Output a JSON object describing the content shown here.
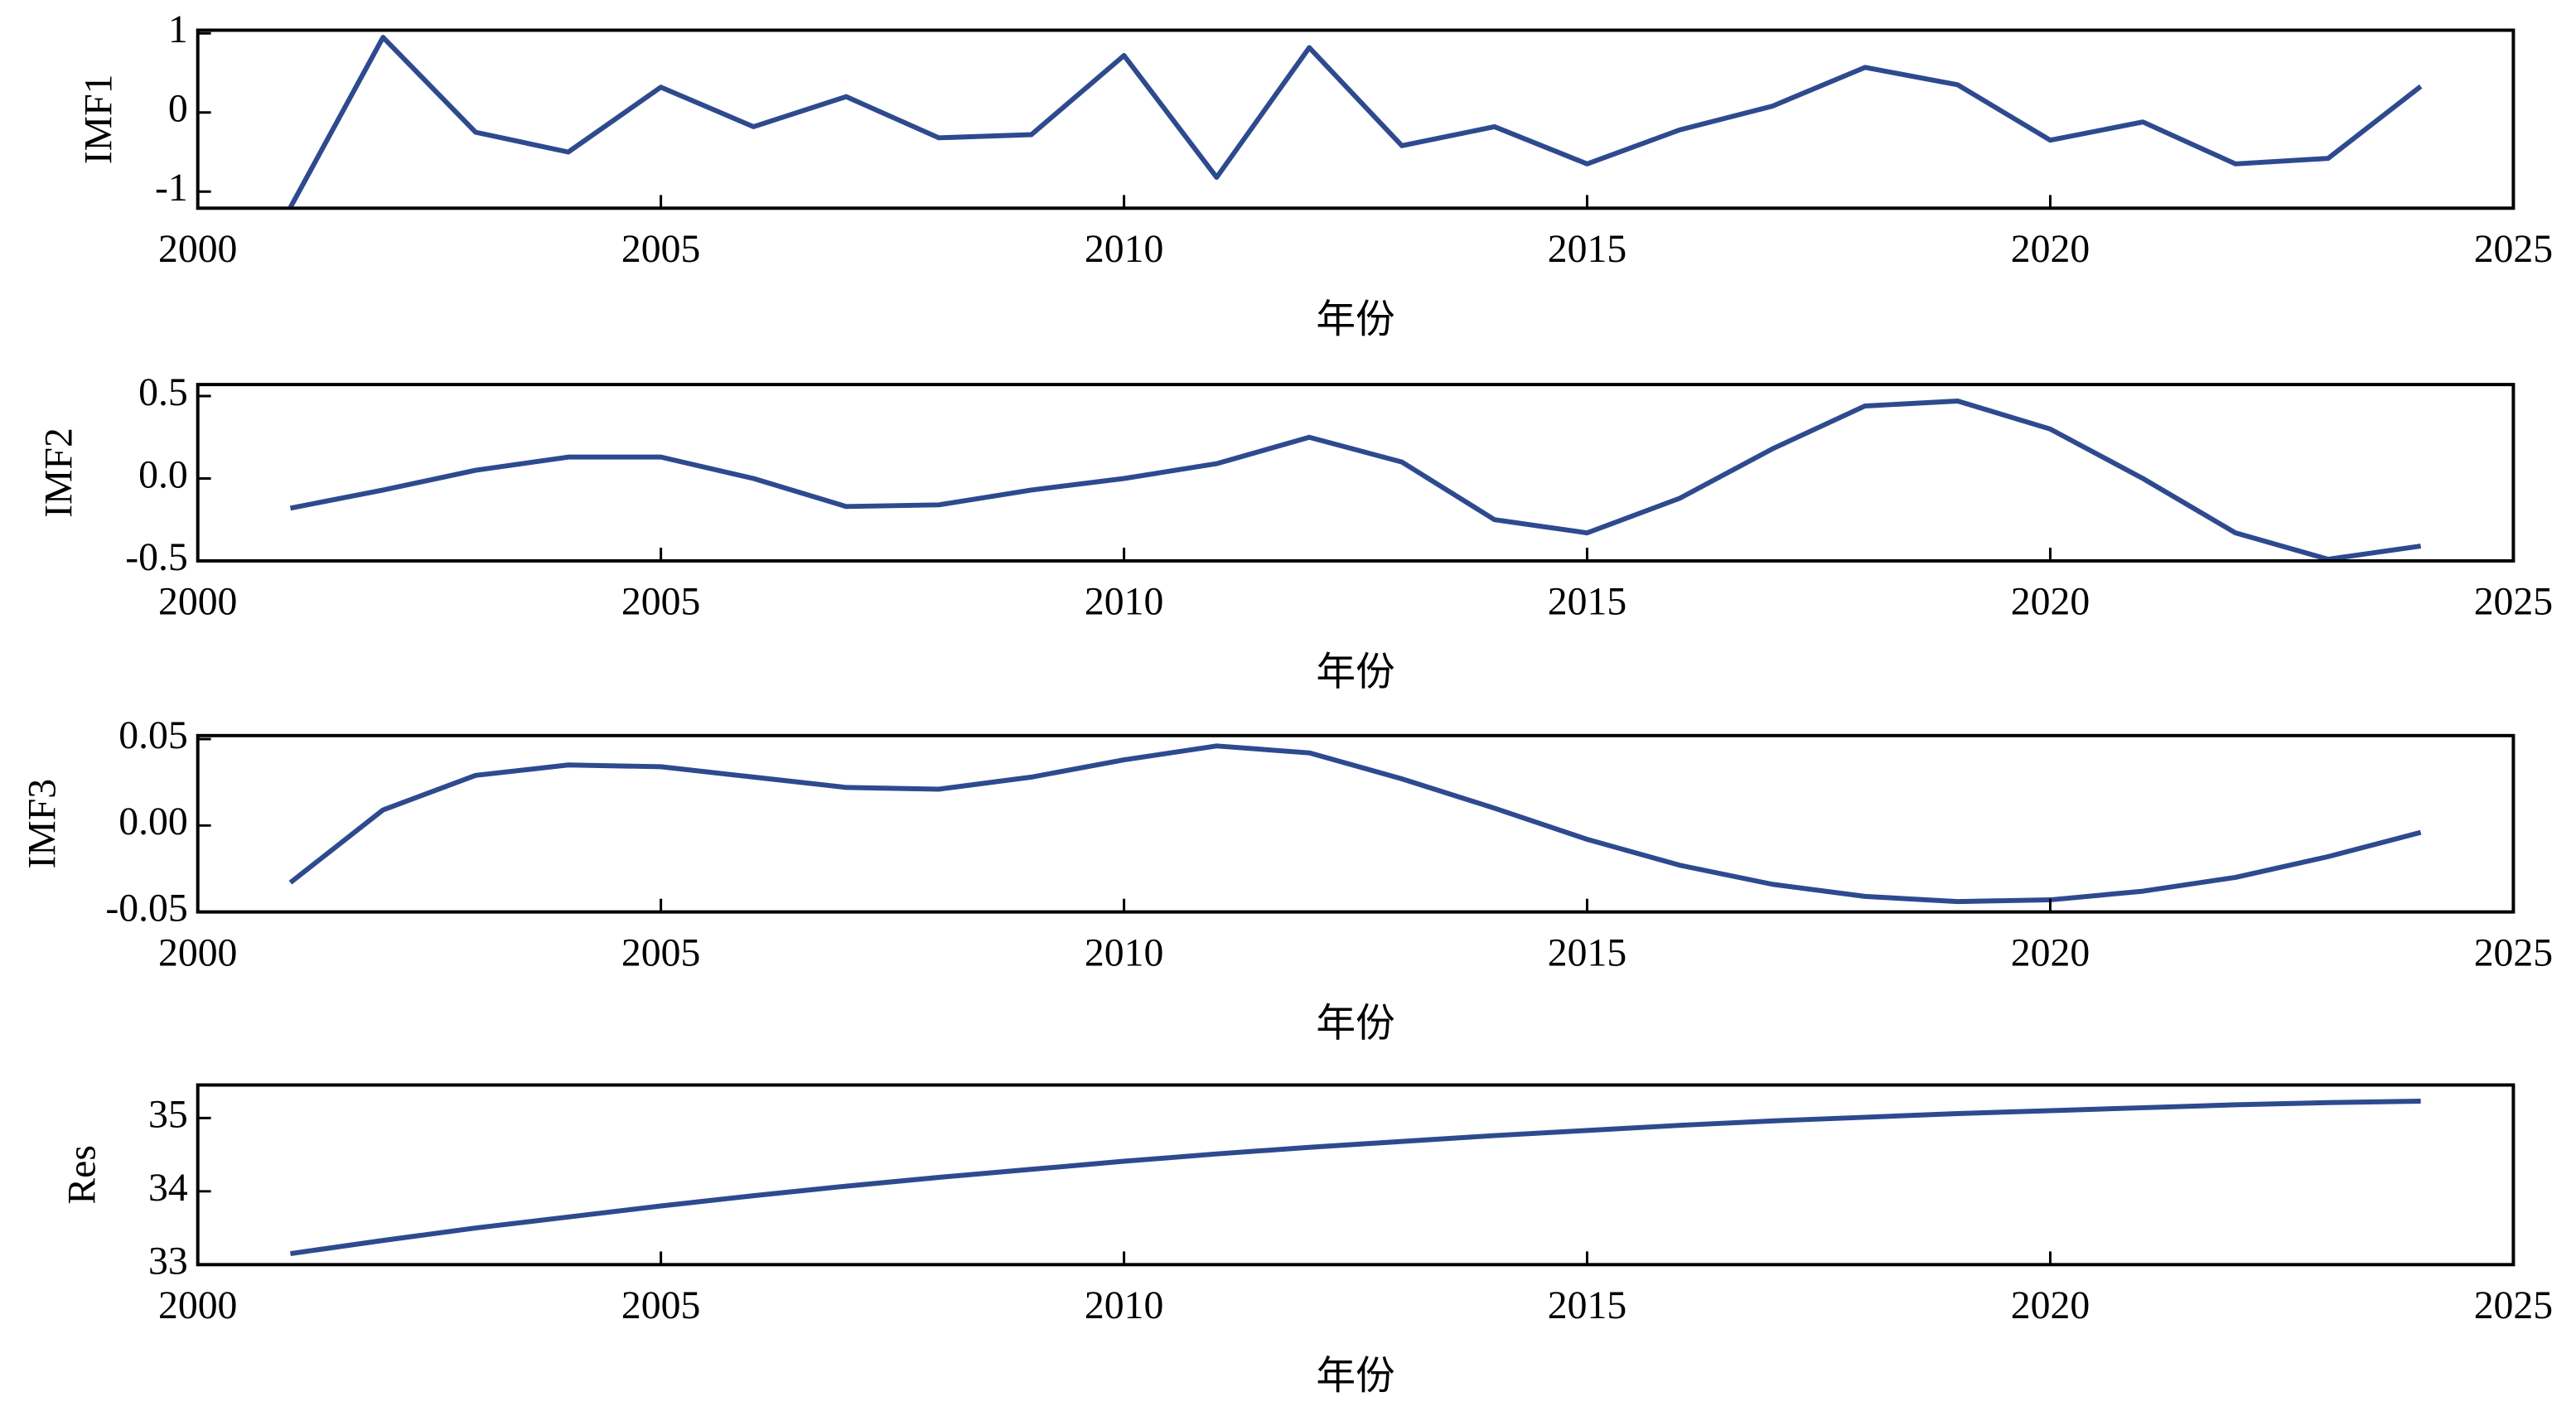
{
  "chart_data": [
    {
      "type": "line",
      "ylabel": "IMF1",
      "xlabel": "年份",
      "x": [
        2001,
        2002,
        2003,
        2004,
        2005,
        2006,
        2007,
        2008,
        2009,
        2010,
        2011,
        2012,
        2013,
        2014,
        2015,
        2016,
        2017,
        2018,
        2019,
        2020,
        2021,
        2022,
        2023,
        2024
      ],
      "series": [
        {
          "color": "#2e4a8f",
          "values": [
            -1.2,
            0.95,
            -0.25,
            -0.5,
            0.32,
            -0.18,
            0.2,
            -0.32,
            -0.28,
            0.72,
            -0.82,
            0.82,
            -0.42,
            -0.18,
            -0.65,
            -0.22,
            0.08,
            0.57,
            0.35,
            -0.35,
            -0.12,
            -0.65,
            -0.58,
            0.33
          ]
        }
      ],
      "xlim": [
        2000,
        2025
      ],
      "xticks": [
        2000,
        2005,
        2010,
        2015,
        2020,
        2025
      ],
      "ylim": [
        -1.21,
        1.04
      ],
      "yticks": [
        -1,
        0,
        1
      ]
    },
    {
      "type": "line",
      "ylabel": "IMF2",
      "xlabel": "年份",
      "x": [
        2001,
        2002,
        2003,
        2004,
        2005,
        2006,
        2007,
        2008,
        2009,
        2010,
        2011,
        2012,
        2013,
        2014,
        2015,
        2016,
        2017,
        2018,
        2019,
        2020,
        2021,
        2022,
        2023,
        2024
      ],
      "series": [
        {
          "color": "#2e4a8f",
          "values": [
            -0.18,
            -0.07,
            0.05,
            0.13,
            0.13,
            0.0,
            -0.17,
            -0.16,
            -0.07,
            0.0,
            0.09,
            0.25,
            0.1,
            -0.25,
            -0.33,
            -0.12,
            0.18,
            0.44,
            0.47,
            0.3,
            0.0,
            -0.33,
            -0.49,
            -0.41
          ]
        }
      ],
      "xlim": [
        2000,
        2025
      ],
      "xticks": [
        2000,
        2005,
        2010,
        2015,
        2020,
        2025
      ],
      "ylim": [
        -0.5,
        0.57
      ],
      "yticks": [
        -0.5,
        {
          "value": 0,
          "label": "0.0"
        },
        0.5
      ]
    },
    {
      "type": "line",
      "ylabel": "IMF3",
      "xlabel": "年份",
      "x": [
        2001,
        2002,
        2003,
        2004,
        2005,
        2006,
        2007,
        2008,
        2009,
        2010,
        2011,
        2012,
        2013,
        2014,
        2015,
        2016,
        2017,
        2018,
        2019,
        2020,
        2021,
        2022,
        2023,
        2024
      ],
      "series": [
        {
          "color": "#2e4a8f",
          "values": [
            -0.033,
            0.009,
            0.029,
            0.035,
            0.034,
            0.028,
            0.022,
            0.021,
            0.028,
            0.038,
            0.046,
            0.042,
            0.027,
            0.01,
            -0.008,
            -0.023,
            -0.034,
            -0.041,
            -0.044,
            -0.043,
            -0.038,
            -0.03,
            -0.018,
            -0.004
          ]
        }
      ],
      "xlim": [
        2000,
        2025
      ],
      "xticks": [
        2000,
        2005,
        2010,
        2015,
        2020,
        2025
      ],
      "ylim": [
        -0.05,
        0.052
      ],
      "yticks": [
        -0.05,
        {
          "value": 0,
          "label": "0.00"
        },
        0.05
      ]
    },
    {
      "type": "line",
      "ylabel": "Res",
      "xlabel": "年份",
      "x": [
        2001,
        2002,
        2003,
        2004,
        2005,
        2006,
        2007,
        2008,
        2009,
        2010,
        2011,
        2012,
        2013,
        2014,
        2015,
        2016,
        2017,
        2018,
        2019,
        2020,
        2021,
        2022,
        2023,
        2024
      ],
      "series": [
        {
          "color": "#2e4a8f",
          "values": [
            33.15,
            33.33,
            33.5,
            33.65,
            33.8,
            33.94,
            34.07,
            34.19,
            34.3,
            34.41,
            34.51,
            34.6,
            34.68,
            34.76,
            34.83,
            34.9,
            34.96,
            35.01,
            35.06,
            35.1,
            35.14,
            35.18,
            35.21,
            35.23
          ]
        }
      ],
      "xlim": [
        2000,
        2025
      ],
      "xticks": [
        2000,
        2005,
        2010,
        2015,
        2020,
        2025
      ],
      "ylim": [
        33,
        35.45
      ],
      "yticks": [
        33,
        34,
        35
      ]
    }
  ]
}
